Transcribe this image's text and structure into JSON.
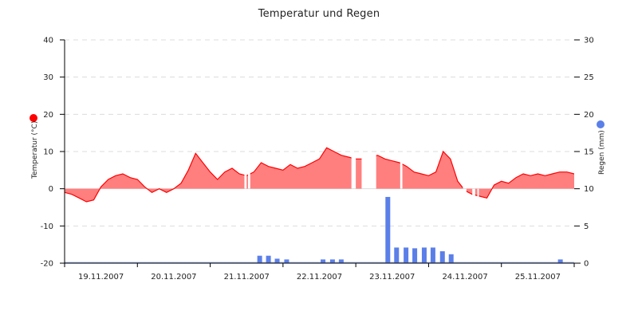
{
  "chart": {
    "title": "Temperatur und Regen",
    "left_axis_label": "Temperatur (°C)",
    "right_axis_label": "Regen (mm)",
    "temp_color": "#ff0000",
    "temp_fill": "#ff7f7f",
    "rain_color": "#5b7fe8",
    "left_ticks": [
      "40",
      "30",
      "20",
      "10",
      "0",
      "-10",
      "-20"
    ],
    "right_ticks": [
      "30",
      "25",
      "20",
      "15",
      "10",
      "5",
      "0"
    ],
    "x_ticks": [
      "19.11.2007",
      "20.11.2007",
      "21.11.2007",
      "22.11.2007",
      "23.11.2007",
      "24.11.2007",
      "25.11.2007"
    ]
  },
  "chart_data": {
    "type": "area+bar",
    "title": "Temperatur und Regen",
    "xlabel": "",
    "categories": [
      "19.11.2007",
      "20.11.2007",
      "21.11.2007",
      "22.11.2007",
      "23.11.2007",
      "24.11.2007",
      "25.11.2007"
    ],
    "legend_position": "axis-titles",
    "grid": true,
    "series": [
      {
        "name": "Temperatur (°C)",
        "type": "area",
        "axis": "left",
        "ylim": [
          -20,
          40
        ],
        "color": "#ff0000",
        "x_day": [
          0.0,
          0.1,
          0.2,
          0.3,
          0.4,
          0.5,
          0.6,
          0.7,
          0.8,
          0.9,
          1.0,
          1.1,
          1.2,
          1.3,
          1.4,
          1.5,
          1.6,
          1.7,
          1.8,
          1.9,
          2.0,
          2.1,
          2.2,
          2.3,
          2.4,
          2.5,
          2.6,
          2.7,
          2.8,
          2.9,
          3.0,
          3.1,
          3.2,
          3.3,
          3.4,
          3.5,
          3.6,
          3.7,
          3.8,
          3.9,
          4.0,
          4.1,
          4.2,
          4.3,
          4.4,
          4.5,
          4.6,
          4.7,
          4.8,
          4.9,
          5.0,
          5.1,
          5.2,
          5.3,
          5.4,
          5.5,
          5.6,
          5.7,
          5.8,
          5.9,
          6.0,
          6.1,
          6.2,
          6.3,
          6.4,
          6.5,
          6.6,
          6.7,
          6.8,
          6.9,
          7.0
        ],
        "values": [
          -1,
          -1.5,
          -2.5,
          -3.5,
          -3,
          0.5,
          2.5,
          3.5,
          4,
          3,
          2.5,
          0.5,
          -1,
          0,
          -1,
          0,
          1.5,
          5,
          9.5,
          7,
          4.5,
          2.5,
          4.5,
          5.5,
          4,
          3.5,
          4.5,
          7,
          6,
          5.5,
          5,
          6.5,
          5.5,
          6,
          7,
          8,
          11,
          10,
          9,
          8.5,
          8,
          8,
          8.5,
          9,
          8,
          7.5,
          7,
          6,
          4.5,
          4,
          3.5,
          4.5,
          10,
          8,
          2,
          -0.5,
          -1.5,
          -2,
          -2.5,
          1,
          2,
          1.5,
          3,
          4,
          3.5,
          4,
          3.5,
          4,
          4.5,
          4.5,
          4
        ],
        "gaps_day_ranges": [
          [
            2.47,
            2.5
          ],
          [
            2.52,
            2.55
          ],
          [
            3.94,
            4.0
          ],
          [
            4.08,
            4.28
          ],
          [
            4.61,
            4.64
          ],
          [
            5.47,
            5.52
          ],
          [
            5.6,
            5.64
          ],
          [
            5.67,
            5.69
          ]
        ]
      },
      {
        "name": "Regen (mm)",
        "type": "bar",
        "axis": "right",
        "ylim": [
          0,
          30
        ],
        "color": "#5b7fe8",
        "x_day": [
          2.68,
          2.8,
          2.92,
          3.05,
          3.55,
          3.68,
          3.8,
          4.44,
          4.56,
          4.69,
          4.81,
          4.94,
          5.06,
          5.19,
          5.31,
          6.81
        ],
        "values": [
          1.0,
          1.0,
          0.6,
          0.5,
          0.5,
          0.5,
          0.5,
          8.9,
          2.1,
          2.1,
          2.0,
          2.1,
          2.1,
          1.6,
          1.2,
          0.5
        ]
      }
    ],
    "ylabel": "Temperatur (°C)",
    "ylabel_right": "Regen (mm)",
    "ylim": [
      -20,
      40
    ],
    "ylim_right": [
      0,
      30
    ],
    "left_ticks": [
      40,
      30,
      20,
      10,
      0,
      -10,
      -20
    ],
    "right_ticks": [
      30,
      25,
      20,
      15,
      10,
      5,
      0
    ]
  }
}
